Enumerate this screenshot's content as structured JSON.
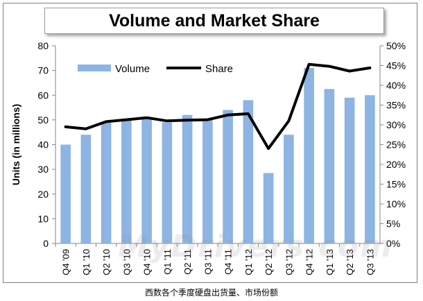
{
  "chart_data": {
    "type": "bar",
    "title": "Volume and Market Share",
    "ylabel": "Units (in millions)",
    "xlabel": "",
    "ylim": [
      0,
      80
    ],
    "y2lim": [
      0,
      50
    ],
    "yticks": [
      "0",
      "10",
      "20",
      "30",
      "40",
      "50",
      "60",
      "70",
      "80"
    ],
    "y2ticks": [
      "0%",
      "5%",
      "10%",
      "15%",
      "20%",
      "25%",
      "30%",
      "35%",
      "40%",
      "45%",
      "50%"
    ],
    "categories": [
      "Q4 '09",
      "Q1 '10",
      "Q2 '10",
      "Q3 '10",
      "Q4 '10",
      "Q1 '11",
      "Q2 '11",
      "Q3 '11",
      "Q4 '11",
      "Q1 '12",
      "Q2 '12",
      "Q3 '12",
      "Q4 '12",
      "Q1 '13",
      "Q2 '13",
      "Q3 '13"
    ],
    "series": [
      {
        "name": "Volume",
        "type": "bar",
        "axis": "left",
        "color": "#8db4e2",
        "values": [
          40,
          44,
          49,
          50,
          51,
          49,
          52,
          50,
          54,
          58,
          28.5,
          44,
          71,
          62.5,
          59,
          60
        ]
      },
      {
        "name": "Share",
        "type": "line",
        "axis": "right",
        "color": "#000000",
        "values": [
          29.5,
          29,
          30.8,
          31.3,
          31.8,
          31,
          31.2,
          31.3,
          32.5,
          32.8,
          24,
          31,
          45.3,
          44.8,
          43.6,
          44.4
        ]
      }
    ],
    "grid": false,
    "legend": "top-left"
  },
  "caption": "西数各个季度硬盘出货量、市场份额",
  "watermark": "MyDrivers.com"
}
